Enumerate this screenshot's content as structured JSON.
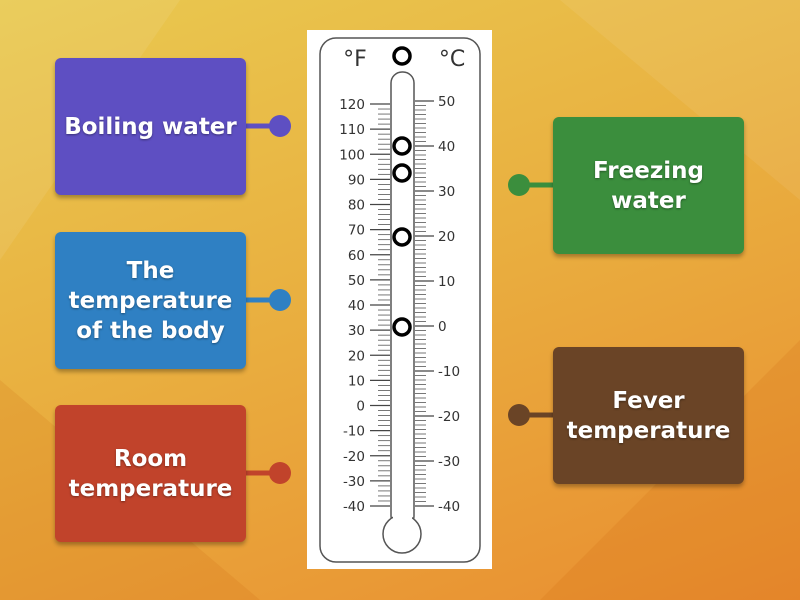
{
  "cards": {
    "left": [
      {
        "label": "Boiling water",
        "color": "#5e4fc2"
      },
      {
        "label": "The temperature of the body",
        "color": "#2f80c3"
      },
      {
        "label": "Room temperature",
        "color": "#c1432b"
      }
    ],
    "right": [
      {
        "label": "Freezing water",
        "color": "#3b8e3d"
      },
      {
        "label": "Fever temperature",
        "color": "#6a4426"
      }
    ]
  },
  "thermometer": {
    "fahrenheit_unit": "°F",
    "celsius_unit": "°C",
    "fahrenheit_labels": [
      120,
      110,
      100,
      90,
      80,
      70,
      60,
      50,
      40,
      30,
      20,
      10,
      0,
      -10,
      -20,
      -30,
      -40
    ],
    "celsius_labels": [
      50,
      40,
      30,
      20,
      10,
      0,
      -10,
      -20,
      -30,
      -40
    ]
  }
}
